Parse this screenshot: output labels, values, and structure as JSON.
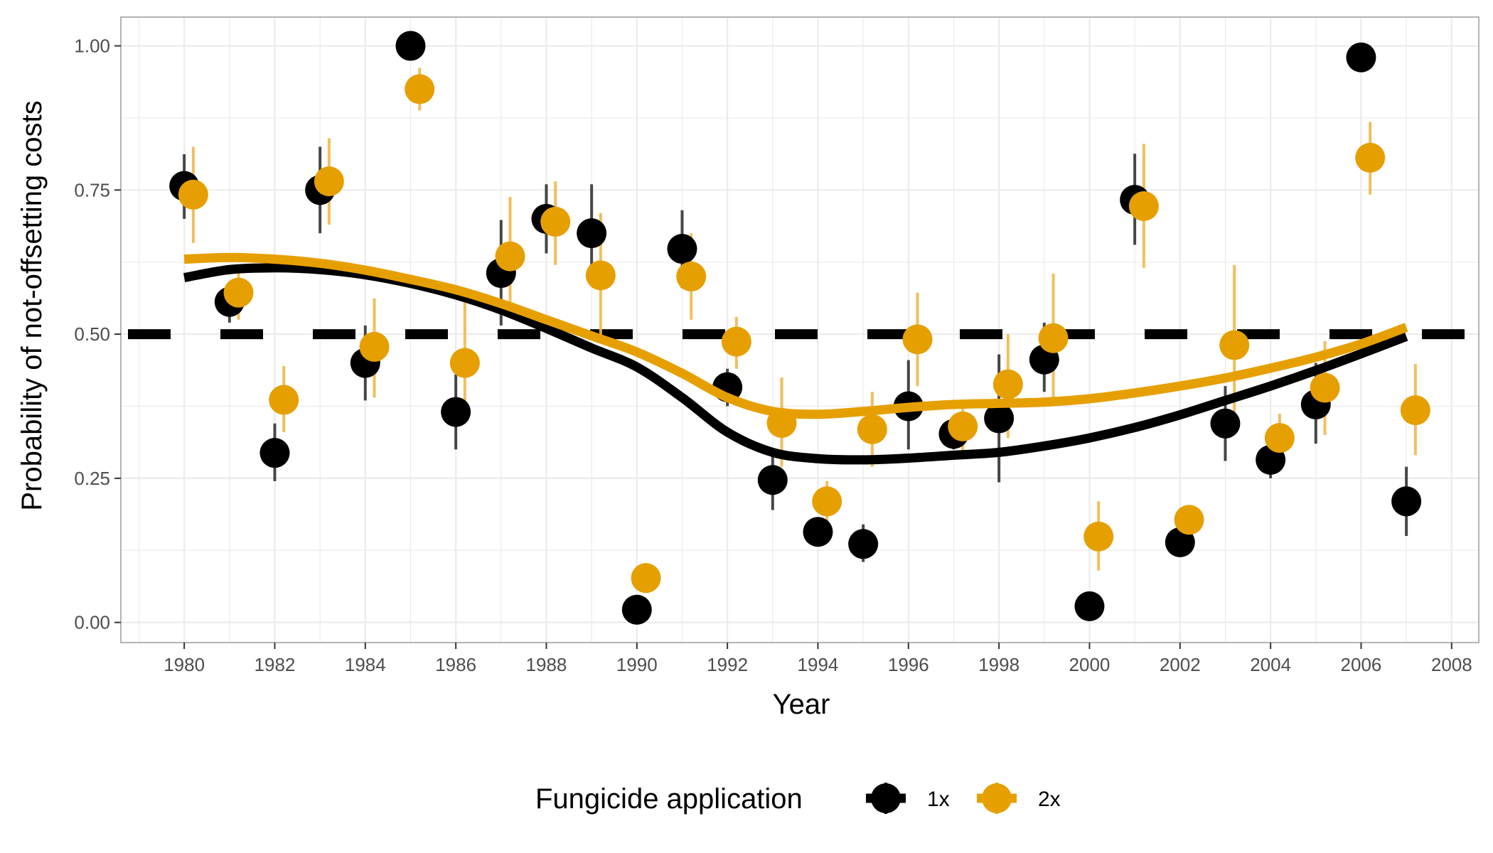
{
  "chart_data": {
    "type": "scatter",
    "xlabel": "Year",
    "ylabel": "Probability of not-offsetting costs",
    "xlim": [
      1978.6,
      2008.6
    ],
    "ylim": [
      -0.035,
      1.05
    ],
    "x_ticks": [
      1980,
      1982,
      1984,
      1986,
      1988,
      1990,
      1992,
      1994,
      1996,
      1998,
      2000,
      2002,
      2004,
      2006,
      2008
    ],
    "y_ticks": [
      0.0,
      0.25,
      0.5,
      0.75,
      1.0
    ],
    "y_tick_labels": [
      "0.00",
      "0.25",
      "0.50",
      "0.75",
      "1.00"
    ],
    "reference_line": {
      "y": 0.5,
      "style": "dashed",
      "color": "#000000"
    },
    "grid": true,
    "legend": {
      "title": "Fungicide application",
      "position": "bottom"
    },
    "series": [
      {
        "name": "1x",
        "color": "#000000",
        "x": [
          1980,
          1981,
          1982,
          1983,
          1984,
          1985,
          1986,
          1987,
          1988,
          1989,
          1990,
          1991,
          1992,
          1993,
          1994,
          1995,
          1996,
          1997,
          1998,
          1999,
          2000,
          2001,
          2002,
          2003,
          2004,
          2005,
          2006,
          2007
        ],
        "y": [
          0.757,
          0.556,
          0.294,
          0.75,
          0.45,
          1.0,
          0.365,
          0.606,
          0.7,
          0.675,
          0.022,
          0.648,
          0.408,
          0.247,
          0.157,
          0.136,
          0.375,
          0.327,
          0.354,
          0.456,
          0.028,
          0.733,
          0.139,
          0.345,
          0.282,
          0.378,
          0.98,
          0.21
        ],
        "ylow": [
          0.7,
          0.52,
          0.245,
          0.675,
          0.385,
          1.0,
          0.3,
          0.515,
          0.64,
          0.615,
          0.01,
          0.58,
          0.375,
          0.195,
          0.15,
          0.105,
          0.3,
          0.3,
          0.243,
          0.4,
          0.02,
          0.655,
          0.125,
          0.28,
          0.25,
          0.31,
          0.975,
          0.15
        ],
        "yhigh": [
          0.812,
          0.59,
          0.345,
          0.825,
          0.515,
          1.0,
          0.43,
          0.698,
          0.76,
          0.76,
          0.035,
          0.715,
          0.44,
          0.3,
          0.165,
          0.17,
          0.455,
          0.355,
          0.465,
          0.52,
          0.04,
          0.813,
          0.155,
          0.41,
          0.31,
          0.45,
          0.985,
          0.27
        ],
        "smooth_x": [
          1980,
          1981,
          1982,
          1983,
          1984,
          1985,
          1986,
          1987,
          1988,
          1989,
          1990,
          1991,
          1992,
          1993,
          1994,
          1995,
          1996,
          1997,
          1998,
          1999,
          2000,
          2001,
          2002,
          2003,
          2004,
          2005,
          2006,
          2007
        ],
        "smooth_y": [
          0.598,
          0.612,
          0.615,
          0.612,
          0.603,
          0.588,
          0.568,
          0.542,
          0.51,
          0.476,
          0.443,
          0.39,
          0.33,
          0.295,
          0.284,
          0.282,
          0.285,
          0.29,
          0.295,
          0.306,
          0.32,
          0.338,
          0.36,
          0.385,
          0.41,
          0.437,
          0.466,
          0.496
        ]
      },
      {
        "name": "2x",
        "color": "#E69F00",
        "x": [
          1980.2,
          1981.2,
          1982.2,
          1983.2,
          1984.2,
          1985.2,
          1986.2,
          1987.2,
          1988.2,
          1989.2,
          1990.2,
          1991.2,
          1992.2,
          1993.2,
          1994.2,
          1995.2,
          1996.2,
          1997.2,
          1998.2,
          1999.2,
          2000.2,
          2001.2,
          2002.2,
          2003.2,
          2004.2,
          2005.2,
          2006.2,
          2007.2
        ],
        "y": [
          0.742,
          0.572,
          0.386,
          0.765,
          0.478,
          0.925,
          0.45,
          0.635,
          0.695,
          0.602,
          0.077,
          0.6,
          0.487,
          0.346,
          0.21,
          0.335,
          0.491,
          0.34,
          0.413,
          0.493,
          0.149,
          0.722,
          0.178,
          0.481,
          0.32,
          0.407,
          0.806,
          0.368
        ],
        "ylow": [
          0.658,
          0.525,
          0.33,
          0.69,
          0.39,
          0.888,
          0.345,
          0.53,
          0.62,
          0.495,
          0.06,
          0.525,
          0.44,
          0.27,
          0.175,
          0.27,
          0.41,
          0.29,
          0.32,
          0.385,
          0.09,
          0.615,
          0.16,
          0.365,
          0.28,
          0.325,
          0.742,
          0.29
        ],
        "yhigh": [
          0.825,
          0.62,
          0.445,
          0.84,
          0.562,
          0.962,
          0.56,
          0.738,
          0.765,
          0.71,
          0.095,
          0.675,
          0.53,
          0.425,
          0.245,
          0.4,
          0.572,
          0.385,
          0.5,
          0.605,
          0.21,
          0.83,
          0.195,
          0.62,
          0.362,
          0.488,
          0.868,
          0.448
        ],
        "smooth_x": [
          1980,
          1981,
          1982,
          1983,
          1984,
          1985,
          1986,
          1987,
          1988,
          1989,
          1990,
          1991,
          1992,
          1993,
          1994,
          1995,
          1996,
          1997,
          1998,
          1999,
          2000,
          2001,
          2002,
          2003,
          2004,
          2005,
          2006,
          2007
        ],
        "smooth_y": [
          0.63,
          0.633,
          0.63,
          0.623,
          0.611,
          0.595,
          0.577,
          0.553,
          0.525,
          0.497,
          0.469,
          0.432,
          0.39,
          0.366,
          0.361,
          0.366,
          0.373,
          0.378,
          0.38,
          0.382,
          0.388,
          0.398,
          0.41,
          0.424,
          0.441,
          0.46,
          0.483,
          0.512
        ]
      }
    ]
  }
}
